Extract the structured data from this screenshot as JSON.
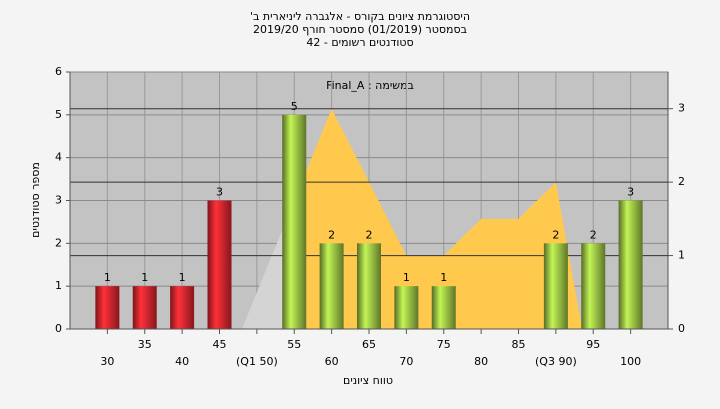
{
  "chart_data": {
    "type": "bar",
    "title_lines": [
      "היסטוגרמת ציונים בקורס - אלגברה ליניארית ב'",
      "בסמסטר (01/2019) סמסטר חורף 2019/20",
      "סטודנטים רשומים - 42"
    ],
    "annotation": "במשימה : Final_A",
    "y_label": "מספר סטודנטים",
    "x_label": "טווח ציונים",
    "categories": [
      "30",
      "35",
      "40",
      "45",
      "(Q1 50)",
      "55",
      "60",
      "65",
      "70",
      "75",
      "80",
      "85",
      "(Q3 90)",
      "95",
      "100"
    ],
    "values": [
      1,
      1,
      1,
      3,
      0,
      5,
      2,
      2,
      1,
      1,
      0,
      0,
      2,
      2,
      3
    ],
    "colors": [
      "#e0262e",
      "#e0262e",
      "#e0262e",
      "#e0262e",
      "#e0262e",
      "#9cc444",
      "#9cc444",
      "#9cc444",
      "#9cc444",
      "#9cc444",
      "#9cc444",
      "#9cc444",
      "#9cc444",
      "#9cc444",
      "#9cc444"
    ],
    "xlim": [
      25,
      105
    ],
    "ylim": [
      0,
      6
    ],
    "yticks": [
      0,
      1,
      2,
      3,
      4,
      5,
      6
    ],
    "y2lim": [
      0,
      3.5
    ],
    "y2ticks": [
      0,
      1,
      2,
      3
    ],
    "area": {
      "type": "area",
      "axis": "y2",
      "color": "#ffc94d",
      "x": [
        48,
        60,
        70,
        75,
        80,
        85,
        90,
        93.5
      ],
      "values": [
        0,
        3,
        1,
        1,
        1.5,
        1.5,
        2,
        0
      ]
    },
    "grid": true
  }
}
